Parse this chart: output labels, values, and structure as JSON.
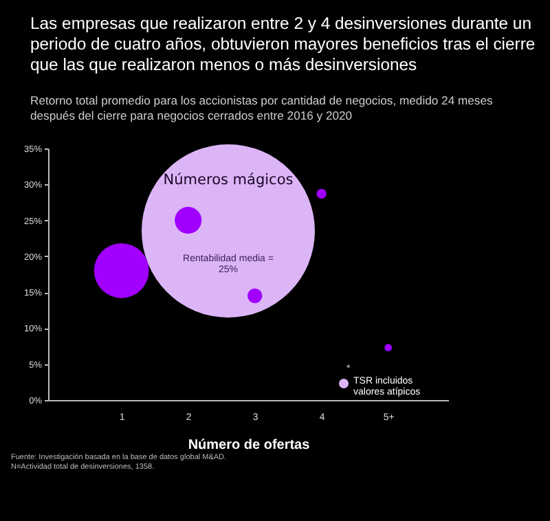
{
  "chart_data": {
    "type": "bubble",
    "title": "Las empresas que realizaron entre 2 y 4 desinversiones durante un periodo de cuatro años, obtuvieron mayores beneficios tras el cierre que las que realizaron menos o más desinversiones",
    "subtitle": "Retorno total promedio para los accionistas por cantidad de negocios, medido 24 meses después del cierre para negocios cerrados entre 2016 y 2020",
    "xlabel": "Número de ofertas",
    "categories": [
      "1",
      "2",
      "3",
      "4",
      "5+"
    ],
    "series": [
      {
        "color": "#a100ff",
        "values": [
          18.0,
          25.0,
          14.5,
          28.7,
          7.3
        ],
        "sizes": [
          1,
          0.24,
          0.071,
          0.032,
          0.018
        ]
      }
    ],
    "ylim": [
      0,
      35
    ],
    "yticks": [
      {
        "value": 0,
        "label": "0%"
      },
      {
        "value": 5,
        "label": "5%"
      },
      {
        "value": 10,
        "label": "10%"
      },
      {
        "value": 15,
        "label": "15%"
      },
      {
        "value": 20,
        "label": "20%"
      },
      {
        "value": 25,
        "label": "25%"
      },
      {
        "value": 30,
        "label": "30%"
      },
      {
        "value": 35,
        "label": "35%"
      }
    ],
    "grid": false,
    "legend": false,
    "annotations": [
      "Números mágicos",
      "Rentabilidad media = 25%",
      "*",
      "TSR incluidos valores atípicos",
      "Fuente: Investigación basada en la base de datos global M&AD.",
      "N=Actividad total de desinversiones, 1358."
    ]
  }
}
